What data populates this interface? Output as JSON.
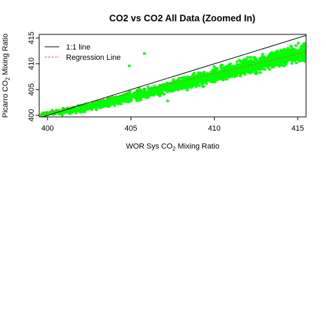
{
  "chart_data": {
    "type": "scatter",
    "title": "CO2 vs CO2 All Data (Zoomed In)",
    "xlabel": {
      "pre": "WOR Sys CO",
      "sub": "2",
      "post": " Mixing Ratio"
    },
    "ylabel": {
      "pre": "Picarro CO",
      "sub": "2",
      "post": " Mixing Ratio"
    },
    "xlim": [
      399.5,
      415.5
    ],
    "ylim": [
      399.7,
      415.7
    ],
    "xticks": [
      400,
      405,
      410,
      415
    ],
    "yticks": [
      400,
      405,
      410,
      415
    ],
    "xtick_labels": [
      "400",
      "405",
      "410",
      "415"
    ],
    "ytick_labels": [
      "400",
      "405",
      "410",
      "415"
    ],
    "legend_position": "top-left",
    "legend": [
      {
        "label": "1:1 line",
        "color": "#000000",
        "style": "solid"
      },
      {
        "label": "Regression Line",
        "color": "#e05555",
        "style": "dashed"
      }
    ],
    "point_color": "#00ff00",
    "reference_line": {
      "slope": 1,
      "intercept": 0
    },
    "regression_line": {
      "slope": 0.75,
      "intercept": 100.6
    },
    "point_cloud": {
      "x_range": [
        399.6,
        415.5
      ],
      "lower_bound_y": [
        [
          399.6,
          399.7
        ],
        [
          402,
          400.2
        ],
        [
          406,
          403.0
        ],
        [
          410,
          405.8
        ],
        [
          413,
          408.1
        ],
        [
          415.5,
          410.0
        ]
      ],
      "upper_bound_y": [
        [
          399.6,
          400.6
        ],
        [
          402,
          402.4
        ],
        [
          406,
          405.8
        ],
        [
          410,
          409.6
        ],
        [
          413,
          412.6
        ],
        [
          415.5,
          414.8
        ]
      ]
    },
    "outliers": [
      {
        "x": 405.8,
        "y": 412.0
      },
      {
        "x": 404.9,
        "y": 409.6
      },
      {
        "x": 407.2,
        "y": 402.8
      },
      {
        "x": 401.2,
        "y": 401.4
      }
    ]
  }
}
